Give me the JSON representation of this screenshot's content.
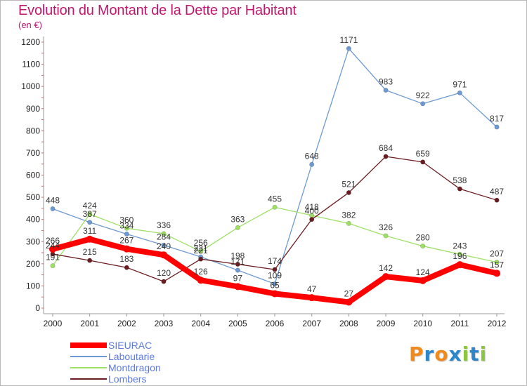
{
  "title": "Evolution du Montant de la Dette par Habitant",
  "unit_label": "(en €)",
  "logo": {
    "letters": [
      "P",
      "r",
      "o",
      "x",
      "i",
      "t",
      "i"
    ],
    "colors": [
      "#f08a1c",
      "#2e86c8",
      "#f08a1c",
      "#2e86c8",
      "#8cc63e",
      "#2e86c8",
      "#8cc63e"
    ]
  },
  "chart_data": {
    "type": "line",
    "title": "Evolution du Montant de la Dette par Habitant",
    "ylabel": "(en €)",
    "xlabel": "",
    "x": [
      "2000",
      "2001",
      "2002",
      "2003",
      "2004",
      "2005",
      "2006",
      "2007",
      "2008",
      "2009",
      "2010",
      "2011",
      "2012"
    ],
    "ylim": [
      0,
      1200
    ],
    "yticks": [
      "0",
      "100",
      "200",
      "300",
      "400",
      "500",
      "600",
      "700",
      "800",
      "900",
      "1000",
      "1100",
      "1200"
    ],
    "grid": false,
    "legend_position": "bottom-left",
    "series": [
      {
        "name": "SIEURAC",
        "color": "#ff0000",
        "emphasis": true,
        "values": [
          266,
          311,
          267,
          240,
          126,
          97,
          65,
          47,
          27,
          142,
          124,
          196,
          157
        ],
        "labels": [
          "266",
          "311",
          "267",
          "240",
          "126",
          "97",
          "65",
          "47",
          "27",
          "142",
          "124",
          "196",
          "157"
        ]
      },
      {
        "name": "Laboutarie",
        "color": "#6d9ad2",
        "emphasis": false,
        "values": [
          448,
          387,
          334,
          284,
          231,
          171,
          109,
          648,
          1171,
          983,
          922,
          971,
          817
        ],
        "labels": [
          "448",
          "387",
          "334",
          "284",
          "231",
          "171",
          "109",
          "648",
          "1171",
          "983",
          "922",
          "971",
          "817"
        ]
      },
      {
        "name": "Montdragon",
        "color": "#9ee065",
        "emphasis": false,
        "values": [
          191,
          424,
          360,
          336,
          256,
          363,
          455,
          418,
          382,
          326,
          280,
          243,
          207
        ],
        "labels": [
          "191",
          "424",
          "360",
          "336",
          "256",
          "363",
          "455",
          "418",
          "382",
          "326",
          "280",
          "243",
          "207"
        ]
      },
      {
        "name": "Lombers",
        "color": "#6b1c20",
        "emphasis": false,
        "values": [
          244,
          215,
          183,
          120,
          221,
          198,
          174,
          400,
          521,
          684,
          659,
          538,
          487
        ],
        "labels": [
          "244",
          "215",
          "183",
          "120",
          "221",
          "198",
          "174",
          "400",
          "521",
          "684",
          "659",
          "538",
          "487"
        ]
      }
    ]
  }
}
